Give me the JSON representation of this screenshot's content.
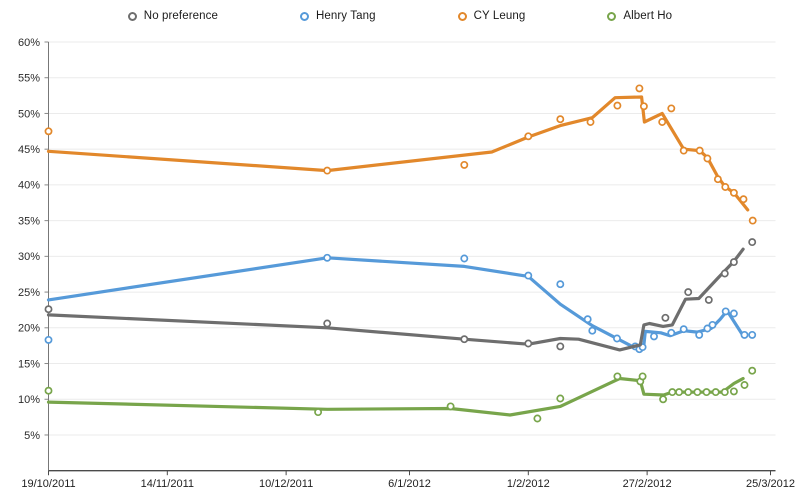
{
  "legend_title": "",
  "chart_data": {
    "type": "line",
    "title": "",
    "xlabel": "",
    "ylabel": "",
    "grid": true,
    "legend_position": "top",
    "x_axis": {
      "type": "date",
      "tick_labels": [
        "19/10/2011",
        "14/11/2011",
        "10/12/2011",
        "6/1/2012",
        "1/2/2012",
        "27/2/2012",
        "25/3/2012"
      ],
      "tick_days": [
        0,
        26,
        52,
        79,
        105,
        131,
        158
      ],
      "min_day": 0,
      "max_day": 158
    },
    "y_axis": {
      "unit": "%",
      "min": 0,
      "max": 60,
      "step": 5,
      "tick_labels": [
        "5%",
        "10%",
        "15%",
        "20%",
        "25%",
        "30%",
        "35%",
        "40%",
        "45%",
        "50%",
        "55%",
        "60%"
      ]
    },
    "series": [
      {
        "name": "No preference",
        "color": "#6E6E6E",
        "trend": [
          [
            0,
            21.8
          ],
          [
            61,
            20.0
          ],
          [
            91,
            18.4
          ],
          [
            105,
            17.7
          ],
          [
            112,
            18.5
          ],
          [
            116,
            18.4
          ],
          [
            125,
            16.9
          ],
          [
            129.5,
            17.6
          ],
          [
            130.3,
            20.4
          ],
          [
            131.5,
            20.6
          ],
          [
            134.5,
            20.2
          ],
          [
            136.5,
            20.4
          ],
          [
            139.4,
            24.0
          ],
          [
            142.3,
            24.1
          ],
          [
            146.4,
            26.9
          ],
          [
            150,
            29.3
          ],
          [
            152,
            31.0
          ]
        ],
        "points": [
          [
            0,
            22.6
          ],
          [
            61,
            20.6
          ],
          [
            91,
            18.4
          ],
          [
            105,
            17.8
          ],
          [
            112,
            17.4
          ],
          [
            135,
            21.4
          ],
          [
            140,
            25.0
          ],
          [
            144.5,
            23.9
          ],
          [
            148,
            27.6
          ],
          [
            150,
            29.2
          ],
          [
            154,
            32.0
          ]
        ]
      },
      {
        "name": "Henry Tang",
        "color": "#569AD9",
        "trend": [
          [
            0,
            23.9
          ],
          [
            61,
            29.8
          ],
          [
            91,
            28.6
          ],
          [
            105,
            27.2
          ],
          [
            112,
            23.3
          ],
          [
            119,
            20.3
          ],
          [
            125,
            18.3
          ],
          [
            128,
            17.3
          ],
          [
            130.2,
            17.1
          ],
          [
            130.6,
            19.5
          ],
          [
            134,
            19.3
          ],
          [
            136,
            18.9
          ],
          [
            139,
            19.6
          ],
          [
            142,
            19.4
          ],
          [
            145,
            19.9
          ],
          [
            147,
            21.2
          ],
          [
            148.5,
            22.4
          ],
          [
            152,
            18.9
          ]
        ],
        "points": [
          [
            0,
            18.3
          ],
          [
            61,
            29.8
          ],
          [
            91,
            29.7
          ],
          [
            105,
            27.3
          ],
          [
            112,
            26.1
          ],
          [
            118,
            21.2
          ],
          [
            119,
            19.6
          ],
          [
            124.4,
            18.5
          ],
          [
            128.4,
            17.4
          ],
          [
            129.3,
            17.0
          ],
          [
            130,
            17.3
          ],
          [
            132.5,
            18.8
          ],
          [
            136.3,
            19.3
          ],
          [
            139,
            19.8
          ],
          [
            142.4,
            19.0
          ],
          [
            144.2,
            19.9
          ],
          [
            145.3,
            20.4
          ],
          [
            148.2,
            22.3
          ],
          [
            150,
            22.0
          ],
          [
            152.3,
            19.0
          ],
          [
            154,
            19.0
          ]
        ]
      },
      {
        "name": "CY Leung",
        "color": "#E2882B",
        "trend": [
          [
            0,
            44.7
          ],
          [
            61,
            42.0
          ],
          [
            97,
            44.6
          ],
          [
            105,
            46.7
          ],
          [
            112,
            48.3
          ],
          [
            119,
            49.4
          ],
          [
            124,
            52.2
          ],
          [
            129.8,
            52.3
          ],
          [
            130.4,
            48.8
          ],
          [
            134.3,
            50.0
          ],
          [
            139,
            45.0
          ],
          [
            142.5,
            44.8
          ],
          [
            144.2,
            43.8
          ],
          [
            146.5,
            41.1
          ],
          [
            148,
            39.8
          ],
          [
            150,
            38.9
          ],
          [
            153,
            36.5
          ]
        ],
        "points": [
          [
            0,
            47.5
          ],
          [
            61,
            42.0
          ],
          [
            91,
            42.8
          ],
          [
            105,
            46.8
          ],
          [
            112,
            49.2
          ],
          [
            118.6,
            48.8
          ],
          [
            124.5,
            51.1
          ],
          [
            129.3,
            53.5
          ],
          [
            130.3,
            51.0
          ],
          [
            134.3,
            48.8
          ],
          [
            136.3,
            50.7
          ],
          [
            139,
            44.8
          ],
          [
            142.5,
            44.8
          ],
          [
            144.2,
            43.7
          ],
          [
            146.5,
            40.8
          ],
          [
            148.1,
            39.7
          ],
          [
            150,
            38.9
          ],
          [
            152.1,
            38.0
          ],
          [
            154.1,
            35.0
          ]
        ]
      },
      {
        "name": "Albert Ho",
        "color": "#78A54B",
        "trend": [
          [
            0,
            9.6
          ],
          [
            61,
            8.6
          ],
          [
            88,
            8.7
          ],
          [
            101,
            7.8
          ],
          [
            112,
            9.0
          ],
          [
            125,
            12.9
          ],
          [
            129.5,
            12.6
          ],
          [
            130.3,
            10.7
          ],
          [
            134.6,
            10.6
          ],
          [
            136.5,
            11.0
          ],
          [
            147.5,
            11.0
          ],
          [
            150,
            12.2
          ],
          [
            152,
            12.9
          ]
        ],
        "points": [
          [
            0,
            11.2
          ],
          [
            59,
            8.2
          ],
          [
            88,
            9.0
          ],
          [
            107,
            7.3
          ],
          [
            112,
            10.1
          ],
          [
            124.5,
            13.2
          ],
          [
            129.5,
            12.5
          ],
          [
            130,
            13.2
          ],
          [
            134.5,
            10.0
          ],
          [
            136.5,
            11.0
          ],
          [
            138,
            11.0
          ],
          [
            140,
            11.0
          ],
          [
            142,
            11.0
          ],
          [
            144,
            11.0
          ],
          [
            146,
            11.0
          ],
          [
            148,
            11.0
          ],
          [
            150,
            11.1
          ],
          [
            152.3,
            12.0
          ],
          [
            154,
            14.0
          ]
        ]
      }
    ]
  }
}
